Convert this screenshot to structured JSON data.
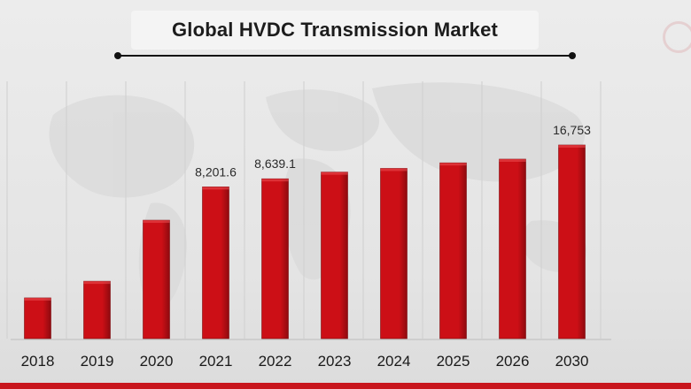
{
  "chart_data": {
    "type": "bar",
    "title": "Global HVDC Transmission Market",
    "xlabel": "",
    "ylabel": "",
    "categories": [
      "2018",
      "2019",
      "2020",
      "2021",
      "2022",
      "2023",
      "2024",
      "2025",
      "2026",
      "2030"
    ],
    "values": [
      2200,
      3100,
      6400,
      8201.6,
      8639.1,
      9000,
      9200,
      9500,
      9700,
      16753
    ],
    "data_labels": [
      "",
      "",
      "",
      "8,201.6",
      "8,639.1",
      "",
      "",
      "",
      "",
      "16,753"
    ],
    "grid": "vertical",
    "legend": "none",
    "axis_scale": "broken (last bar compressed)",
    "colors": {
      "bar": "#cc0f16",
      "bar_dark": "#8e0a0f",
      "grid": "#cfcfcf",
      "accent": "#c8161d"
    }
  }
}
